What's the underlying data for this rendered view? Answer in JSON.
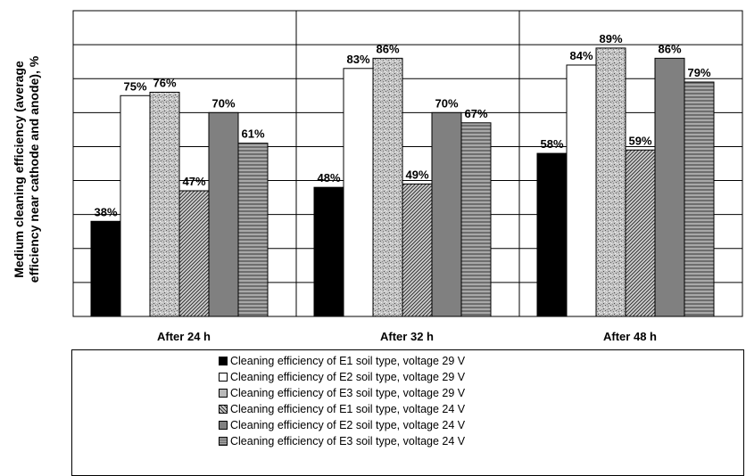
{
  "chart_data": {
    "type": "bar",
    "categories": [
      "After 24 h",
      "After 32 h",
      "After 48 h"
    ],
    "series": [
      {
        "name": "Cleaning efficiency of E1 soil type, voltage 29 V",
        "values": [
          38,
          48,
          58
        ],
        "labels": [
          "38%",
          "48%",
          "58%"
        ],
        "color": "#000000",
        "pattern": "solid-black"
      },
      {
        "name": "Cleaning efficiency of E2 soil type, voltage 29 V",
        "values": [
          75,
          83,
          84
        ],
        "labels": [
          "75%",
          "83%",
          "84%"
        ],
        "color": "#ffffff",
        "pattern": "white"
      },
      {
        "name": "Cleaning efficiency of E3 soil type, voltage 29 V",
        "values": [
          76,
          86,
          89
        ],
        "labels": [
          "76%",
          "86%",
          "89%"
        ],
        "color": "#b8b8b8",
        "pattern": "speckle"
      },
      {
        "name": "Cleaning efficiency of E1 soil type, voltage 24 V",
        "values": [
          47,
          49,
          59
        ],
        "labels": [
          "47%",
          "49%",
          "59%"
        ],
        "color": "#9a9a9a",
        "pattern": "hatch"
      },
      {
        "name": "Cleaning efficiency of E2 soil type, voltage 24 V",
        "values": [
          70,
          70,
          86
        ],
        "labels": [
          "70%",
          "70%",
          "86%"
        ],
        "color": "#808080",
        "pattern": "solid-gray"
      },
      {
        "name": "Cleaning efficiency of E3 soil type, voltage 24 V",
        "values": [
          61,
          67,
          79
        ],
        "labels": [
          "61%",
          "67%",
          "79%"
        ],
        "color": "#8c8c8c",
        "pattern": "hstripe"
      }
    ],
    "ylabel_line1": "Medium cleaning efficiency (average",
    "ylabel_line2": "efficiency near cathode and anode), %",
    "xlabel": "",
    "ylim": [
      10,
      100
    ],
    "grid": true,
    "legend_position": "bottom"
  }
}
